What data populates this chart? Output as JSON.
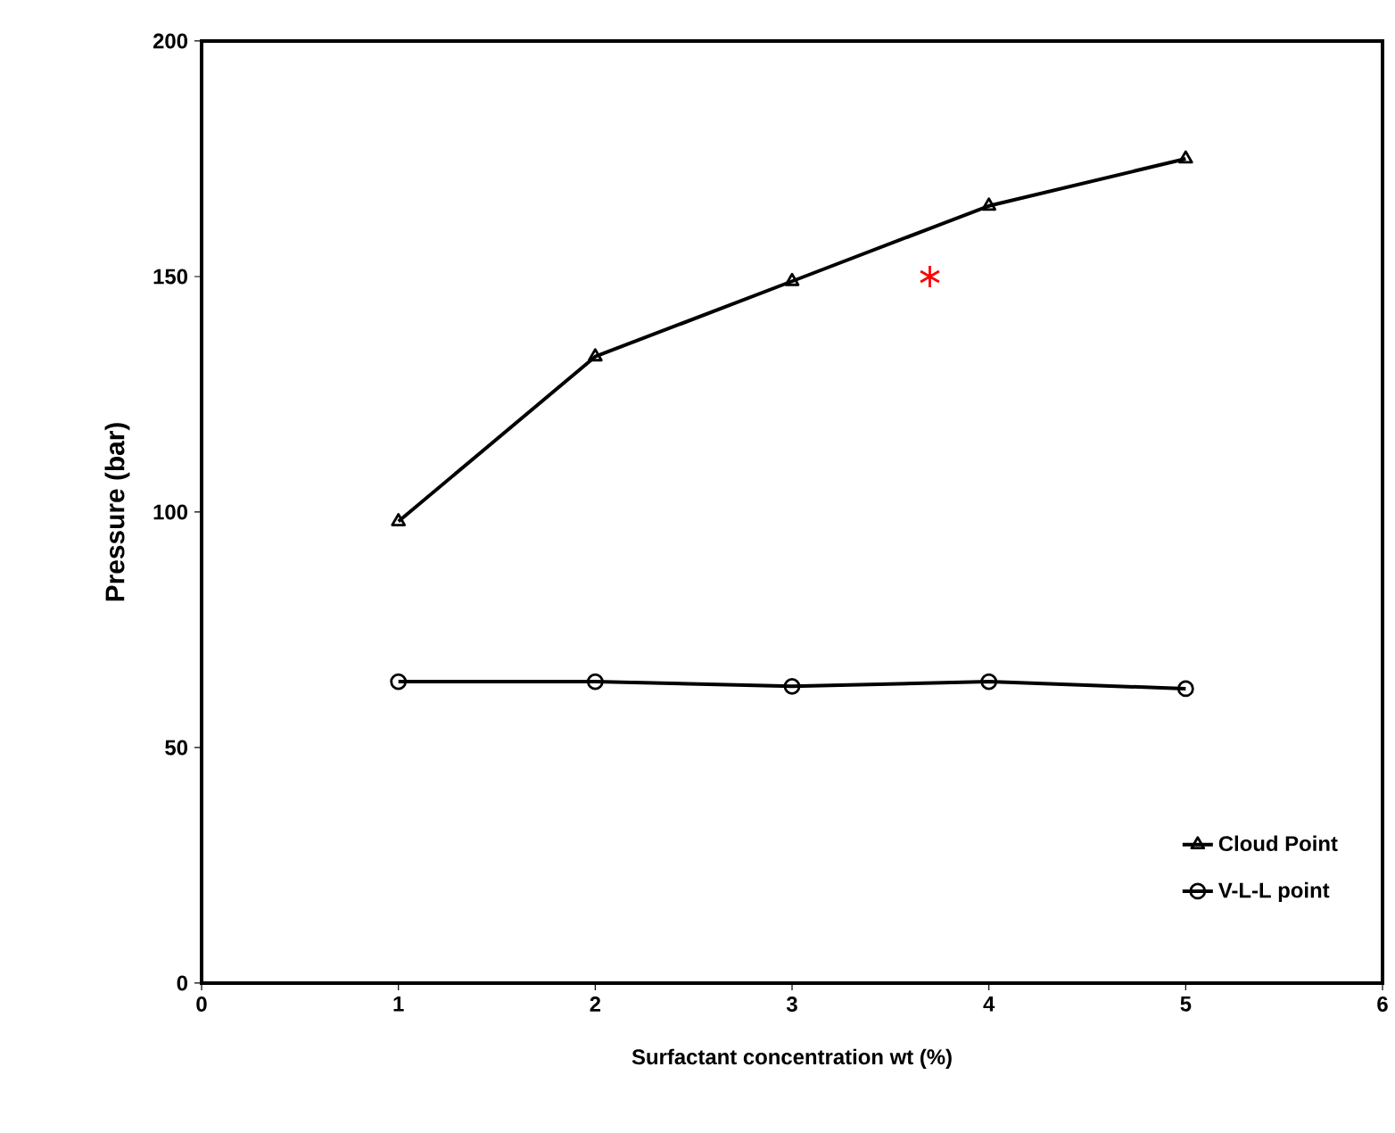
{
  "chart_data": {
    "type": "line",
    "xlabel": "Surfactant concentration wt (%)",
    "ylabel": "Pressure (bar)",
    "xlim": [
      0,
      6
    ],
    "xticks": [
      0,
      1,
      2,
      3,
      4,
      5,
      6
    ],
    "ylim": [
      0,
      200
    ],
    "yticks": [
      0,
      50,
      100,
      150,
      200
    ],
    "grid": false,
    "legend": "bottom right",
    "series": [
      {
        "name": "Cloud Point",
        "color": "#000000",
        "marker": "triangle",
        "x": [
          1,
          2,
          3,
          4,
          5
        ],
        "values": [
          98,
          133,
          149,
          165,
          175
        ]
      },
      {
        "name": "V-L-L point",
        "color": "#000000",
        "marker": "circle",
        "x": [
          1,
          2,
          3,
          4,
          5
        ],
        "values": [
          64,
          64,
          63,
          64,
          62.5
        ]
      },
      {
        "type": "scatter",
        "color": "#ff0000",
        "marker": "cross",
        "x": [
          3.7
        ],
        "values": [
          150
        ]
      }
    ]
  }
}
